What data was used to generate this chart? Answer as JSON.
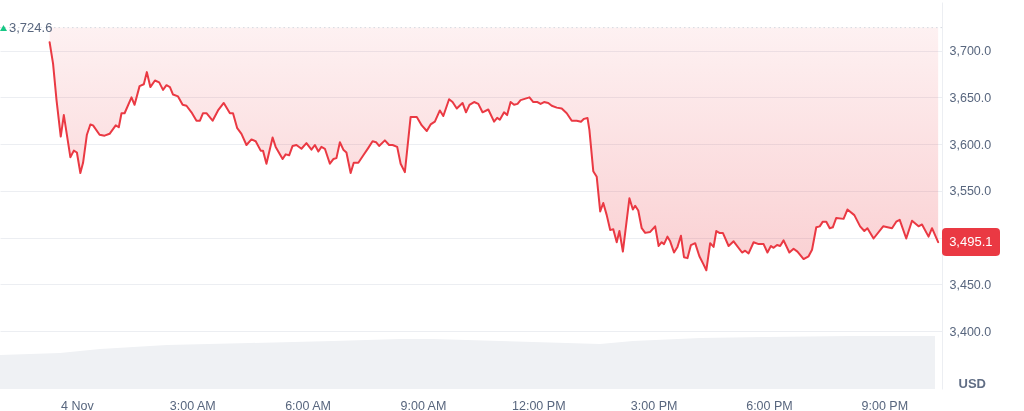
{
  "chart_data": {
    "type": "line",
    "ylabel": "USD",
    "xlim": [
      -2,
      22.5
    ],
    "xticks": [
      {
        "value": 0,
        "label": "4 Nov"
      },
      {
        "value": 3,
        "label": "3:00 AM"
      },
      {
        "value": 6,
        "label": "6:00 AM"
      },
      {
        "value": 9,
        "label": "9:00 AM"
      },
      {
        "value": 12,
        "label": "12:00 PM"
      },
      {
        "value": 15,
        "label": "3:00 PM"
      },
      {
        "value": 18,
        "label": "6:00 PM"
      },
      {
        "value": 21,
        "label": "9:00 PM"
      }
    ],
    "ylim": [
      3338,
      3752
    ],
    "yticks": [
      {
        "value": 3400,
        "label": "3,400.0"
      },
      {
        "value": 3450,
        "label": "3,450.0"
      },
      {
        "value": 3500,
        "label": null
      },
      {
        "value": 3550,
        "label": "3,550.0"
      },
      {
        "value": 3600,
        "label": "3,600.0"
      },
      {
        "value": 3650,
        "label": "3,650.0"
      },
      {
        "value": 3700,
        "label": "3,700.0"
      }
    ],
    "grid": "y",
    "ref_lines": [
      {
        "axis": "y",
        "value": 3724.6,
        "label": "3,724.6",
        "color": "#d5d9e0",
        "line_style": "dotted"
      }
    ],
    "annotations": [
      {
        "text": "3,495.1",
        "x": 22.4,
        "y": 3495.1
      }
    ],
    "series": [
      {
        "color": "#ea3943",
        "x": [
          -0.71,
          -0.62,
          -0.53,
          -0.42,
          -0.34,
          -0.17,
          -0.08,
          0.0,
          0.09,
          0.16,
          0.26,
          0.35,
          0.42,
          0.59,
          0.72,
          0.85,
          1.01,
          1.09,
          1.16,
          1.24,
          1.42,
          1.5,
          1.63,
          1.74,
          1.82,
          1.91,
          2.03,
          2.14,
          2.24,
          2.33,
          2.42,
          2.5,
          2.63,
          2.75,
          2.85,
          2.98,
          3.11,
          3.2,
          3.28,
          3.37,
          3.53,
          3.67,
          3.82,
          3.98,
          4.06,
          4.17,
          4.28,
          4.41,
          4.54,
          4.65,
          4.78,
          4.84,
          4.93,
          5.09,
          5.17,
          5.35,
          5.43,
          5.52,
          5.61,
          5.71,
          5.84,
          5.97,
          6.1,
          6.19,
          6.28,
          6.36,
          6.45,
          6.58,
          6.67,
          6.75,
          6.84,
          6.93,
          7.01,
          7.12,
          7.2,
          7.32,
          7.45,
          7.58,
          7.69,
          7.78,
          7.86,
          8.01,
          8.12,
          8.21,
          8.33,
          8.42,
          8.53,
          8.68,
          8.84,
          8.97,
          9.1,
          9.2,
          9.31,
          9.44,
          9.53,
          9.68,
          9.77,
          9.88,
          10.03,
          10.12,
          10.21,
          10.33,
          10.44,
          10.55,
          10.7,
          10.85,
          10.93,
          11.0,
          11.11,
          11.19,
          11.28,
          11.37,
          11.46,
          11.54,
          11.77,
          11.87,
          11.98,
          12.06,
          12.15,
          12.26,
          12.35,
          12.48,
          12.61,
          12.74,
          12.87,
          13.0,
          13.11,
          13.19,
          13.28,
          13.33,
          13.43,
          13.52,
          13.61,
          13.69,
          13.78,
          13.87,
          13.95,
          14.04,
          14.11,
          14.2,
          14.37,
          14.46,
          14.52,
          14.6,
          14.69,
          14.78,
          14.91,
          15.04,
          15.13,
          15.21,
          15.27,
          15.36,
          15.43,
          15.53,
          15.62,
          15.71,
          15.79,
          15.88,
          15.97,
          16.08,
          16.19,
          16.3,
          16.37,
          16.47,
          16.56,
          16.63,
          16.71,
          16.8,
          16.95,
          17.08,
          17.3,
          17.38,
          17.47,
          17.6,
          17.73,
          17.86,
          17.96,
          18.05,
          18.12,
          18.21,
          18.29,
          18.38,
          18.53,
          18.64,
          18.74,
          18.9,
          19.03,
          19.12,
          19.23,
          19.32,
          19.4,
          19.49,
          19.58,
          19.66,
          19.75,
          19.94,
          20.04,
          20.22,
          20.37,
          20.48,
          20.56,
          20.72,
          20.97,
          21.2,
          21.31,
          21.4,
          21.57,
          21.72,
          21.89,
          21.98,
          22.15,
          22.24,
          22.4
        ],
        "values": [
          3709,
          3686,
          3647,
          3608,
          3631,
          3586,
          3593,
          3591,
          3569,
          3580,
          3610,
          3621,
          3620,
          3610,
          3609,
          3611,
          3620,
          3618,
          3633,
          3633,
          3650,
          3642,
          3662,
          3664,
          3677,
          3661,
          3668,
          3666,
          3658,
          3663,
          3661,
          3653,
          3651,
          3642,
          3641,
          3634,
          3625,
          3625,
          3633,
          3633,
          3625,
          3636,
          3644,
          3633,
          3633,
          3617,
          3611,
          3599,
          3605,
          3603,
          3593,
          3593,
          3579,
          3607,
          3597,
          3584,
          3589,
          3588,
          3598,
          3599,
          3595,
          3601,
          3594,
          3599,
          3592,
          3597,
          3595,
          3579,
          3584,
          3585,
          3602,
          3594,
          3591,
          3569,
          3580,
          3580,
          3588,
          3596,
          3603,
          3602,
          3598,
          3604,
          3599,
          3599,
          3597,
          3579,
          3570,
          3629,
          3629,
          3620,
          3614,
          3621,
          3624,
          3636,
          3630,
          3648,
          3645,
          3638,
          3644,
          3634,
          3642,
          3645,
          3643,
          3634,
          3637,
          3624,
          3628,
          3626,
          3634,
          3631,
          3645,
          3642,
          3643,
          3647,
          3650,
          3645,
          3645,
          3643,
          3645,
          3644,
          3641,
          3639,
          3638,
          3633,
          3625,
          3625,
          3624,
          3627,
          3628,
          3615,
          3571,
          3565,
          3528,
          3537,
          3524,
          3508,
          3509,
          3495,
          3507,
          3485,
          3542,
          3530,
          3534,
          3529,
          3510,
          3505,
          3506,
          3512,
          3491,
          3495,
          3493,
          3501,
          3496,
          3484,
          3490,
          3502,
          3479,
          3478,
          3492,
          3494,
          3480,
          3471,
          3465,
          3494,
          3490,
          3507,
          3505,
          3505,
          3491,
          3496,
          3484,
          3486,
          3483,
          3495,
          3493,
          3493,
          3484,
          3491,
          3489,
          3492,
          3491,
          3497,
          3484,
          3488,
          3485,
          3477,
          3480,
          3487,
          3511,
          3512,
          3517,
          3517,
          3510,
          3511,
          3521,
          3520,
          3530,
          3524,
          3512,
          3507,
          3510,
          3499,
          3512,
          3510,
          3517,
          3519,
          3499,
          3518,
          3512,
          3514,
          3501,
          3510,
          3495.1
        ]
      }
    ]
  }
}
